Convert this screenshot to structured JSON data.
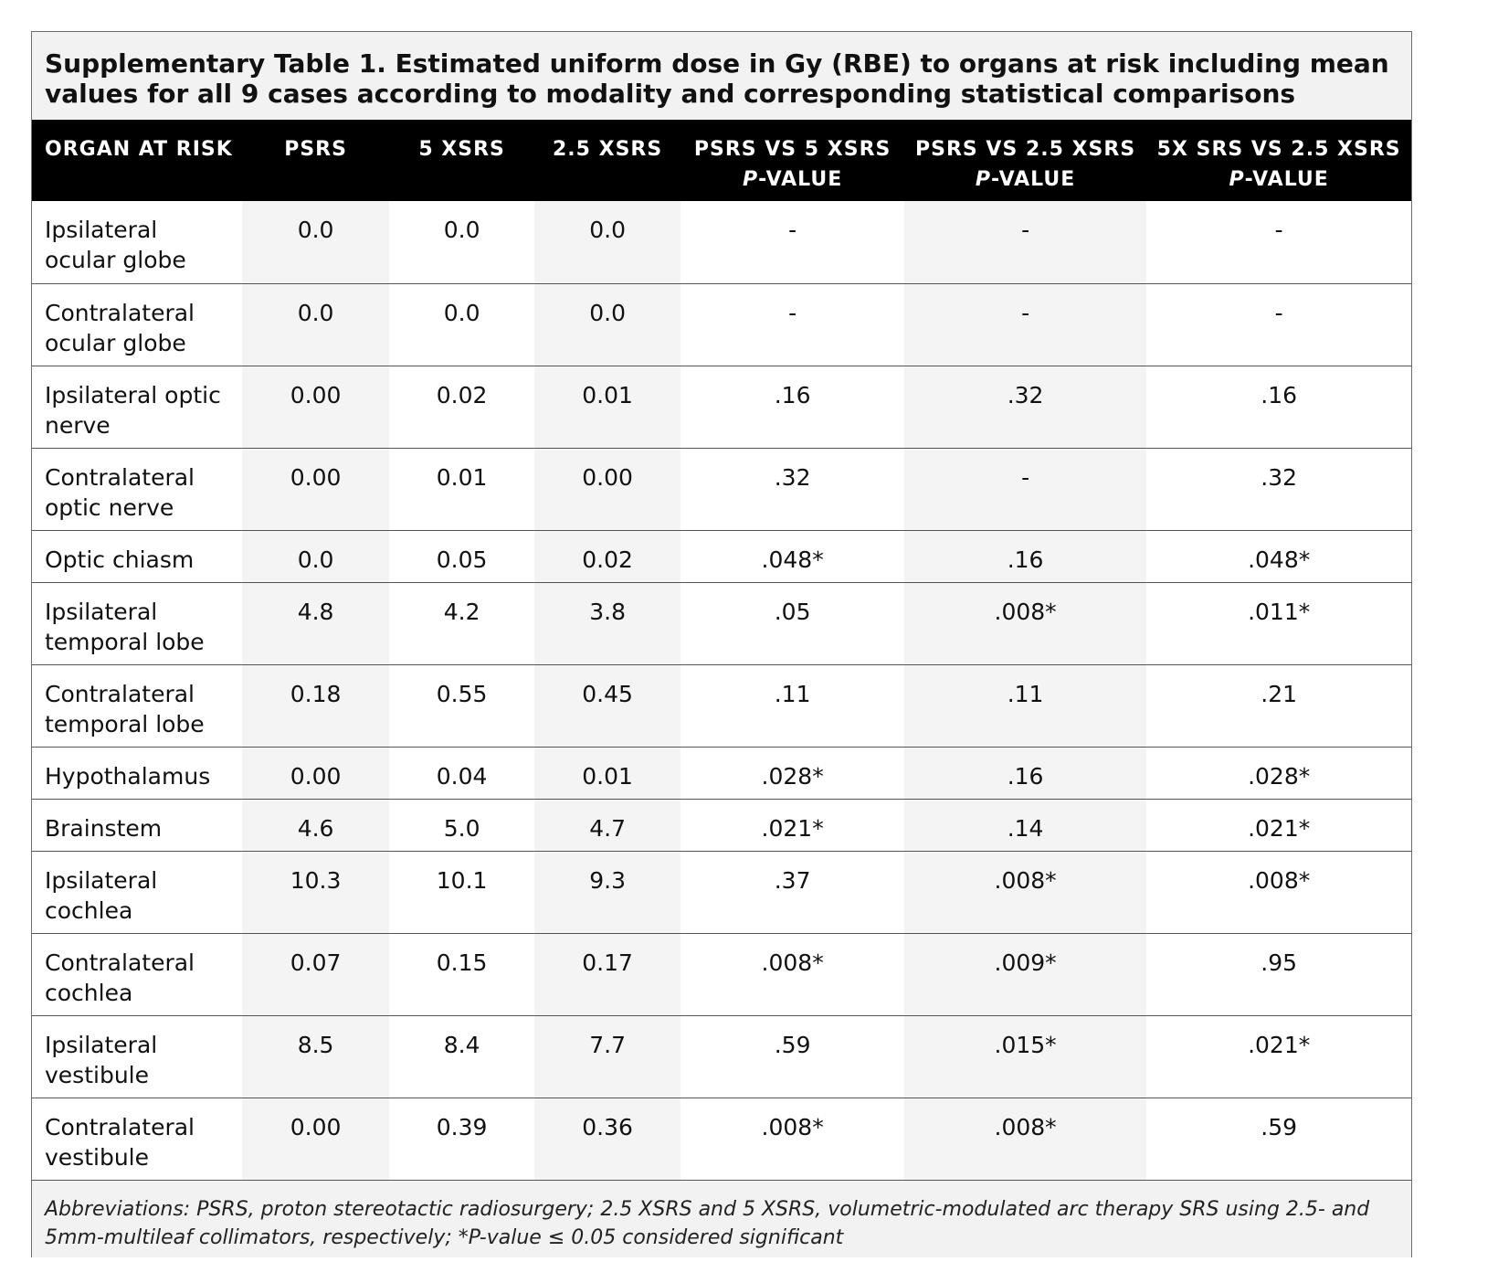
{
  "title": "Supplementary Table 1. Estimated uniform dose in Gy (RBE) to organs at risk including mean values for all 9 cases according to modality and corresponding statistical comparisons",
  "headers": {
    "organ": "ORGAN AT RISK",
    "psrs": "PSRS",
    "x5": "5 XSRS",
    "x25": "2.5 XSRS",
    "p1_line1": "PSRS VS 5 XSRS",
    "p2_line1": "PSRS VS 2.5 XSRS",
    "p3_line1": "5X SRS VS 2.5 XSRS",
    "p_prefix": "P",
    "p_suffix": "-VALUE"
  },
  "rows": [
    {
      "organ": "Ipsilateral ocular globe",
      "psrs": "0.0",
      "x5": "0.0",
      "x25": "0.0",
      "p1": "-",
      "p2": "-",
      "p3": "-"
    },
    {
      "organ": "Contralateral ocular globe",
      "psrs": "0.0",
      "x5": "0.0",
      "x25": "0.0",
      "p1": "-",
      "p2": "-",
      "p3": "-"
    },
    {
      "organ": "Ipsilateral optic nerve",
      "psrs": "0.00",
      "x5": "0.02",
      "x25": "0.01",
      "p1": ".16",
      "p2": ".32",
      "p3": ".16"
    },
    {
      "organ": "Contralateral optic nerve",
      "psrs": "0.00",
      "x5": "0.01",
      "x25": "0.00",
      "p1": ".32",
      "p2": "-",
      "p3": ".32"
    },
    {
      "organ": "Optic chiasm",
      "psrs": "0.0",
      "x5": "0.05",
      "x25": "0.02",
      "p1": ".048*",
      "p2": ".16",
      "p3": ".048*"
    },
    {
      "organ": "Ipsilateral temporal lobe",
      "psrs": "4.8",
      "x5": "4.2",
      "x25": "3.8",
      "p1": ".05",
      "p2": ".008*",
      "p3": ".011*"
    },
    {
      "organ": "Contralateral temporal lobe",
      "psrs": "0.18",
      "x5": "0.55",
      "x25": "0.45",
      "p1": ".11",
      "p2": ".11",
      "p3": ".21"
    },
    {
      "organ": "Hypothalamus",
      "psrs": "0.00",
      "x5": "0.04",
      "x25": "0.01",
      "p1": ".028*",
      "p2": ".16",
      "p3": ".028*"
    },
    {
      "organ": "Brainstem",
      "psrs": "4.6",
      "x5": "5.0",
      "x25": "4.7",
      "p1": ".021*",
      "p2": ".14",
      "p3": ".021*"
    },
    {
      "organ": "Ipsilateral cochlea",
      "psrs": "10.3",
      "x5": "10.1",
      "x25": "9.3",
      "p1": ".37",
      "p2": ".008*",
      "p3": ".008*"
    },
    {
      "organ": "Contralateral cochlea",
      "psrs": "0.07",
      "x5": "0.15",
      "x25": "0.17",
      "p1": ".008*",
      "p2": ".009*",
      "p3": ".95"
    },
    {
      "organ": "Ipsilateral vestibule",
      "psrs": "8.5",
      "x5": "8.4",
      "x25": "7.7",
      "p1": ".59",
      "p2": ".015*",
      "p3": ".021*"
    },
    {
      "organ": "Contralateral vestibule",
      "psrs": "0.00",
      "x5": "0.39",
      "x25": "0.36",
      "p1": ".008*",
      "p2": ".008*",
      "p3": ".59"
    }
  ],
  "footnote": "Abbreviations: PSRS, proton stereotactic radiosurgery; 2.5 XSRS and 5 XSRS, volumetric-modulated arc therapy SRS using 2.5- and 5mm-multileaf collimators, respectively; *P-value ≤ 0.05 considered significant"
}
